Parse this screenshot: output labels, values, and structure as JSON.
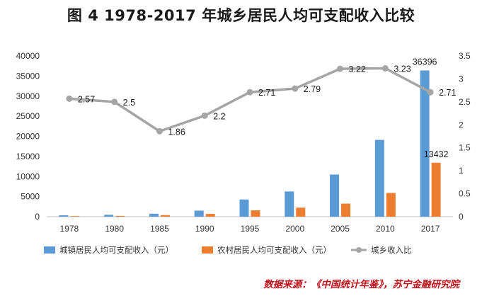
{
  "chart_data": {
    "type": "bar",
    "title": "图 4   1978-2017 年城乡居民人均可支配收入比较",
    "categories": [
      "1978",
      "1980",
      "1985",
      "1990",
      "1995",
      "2000",
      "2005",
      "2010",
      "2017"
    ],
    "series": [
      {
        "name": "城镇居民人均可支配收入（元）",
        "type": "bar",
        "axis": "left",
        "color": "#5b9bd5",
        "values": [
          343,
          478,
          739,
          1510,
          4283,
          6280,
          10493,
          19109,
          36396
        ],
        "labels": [
          "",
          "",
          "",
          "",
          "",
          "",
          "",
          "",
          "36396"
        ]
      },
      {
        "name": "农村居民人均可支配收入（元）",
        "type": "bar",
        "axis": "left",
        "color": "#ed7d31",
        "values": [
          134,
          191,
          398,
          686,
          1578,
          2253,
          3255,
          5919,
          13432
        ],
        "labels": [
          "",
          "",
          "",
          "",
          "",
          "",
          "",
          "",
          "13432"
        ]
      },
      {
        "name": "城乡收入比",
        "type": "line",
        "axis": "right",
        "color": "#a5a5a5",
        "values": [
          2.57,
          2.5,
          1.86,
          2.2,
          2.71,
          2.79,
          3.22,
          3.23,
          2.71
        ],
        "labels": [
          "2.57",
          "2.5",
          "1.86",
          "2.2",
          "2.71",
          "2.79",
          "3.22",
          "3.23",
          "2.71"
        ]
      }
    ],
    "y_left": {
      "lim": [
        0,
        40000
      ],
      "ticks": [
        "0",
        "5000",
        "10000",
        "15000",
        "20000",
        "25000",
        "30000",
        "35000",
        "40000"
      ]
    },
    "y_right": {
      "lim": [
        0,
        3.5
      ],
      "ticks": [
        "0",
        "0.5",
        "1",
        "1.5",
        "2",
        "2.5",
        "3",
        "3.5"
      ]
    },
    "grid": false,
    "legend": "bottom",
    "source": "数据来源：《中国统计年鉴》，苏宁金融研究院"
  }
}
